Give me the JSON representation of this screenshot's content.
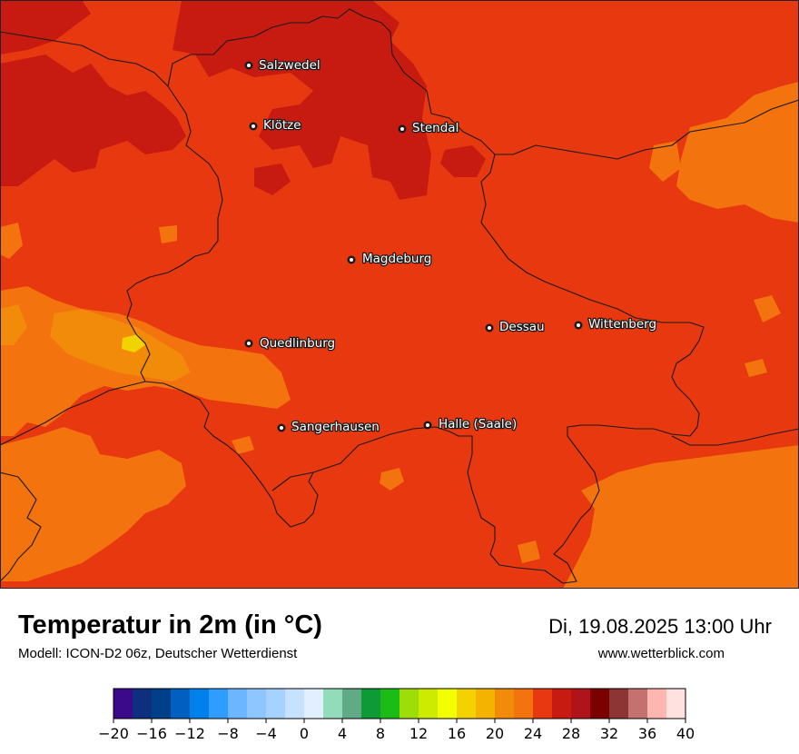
{
  "header": {
    "title": "Temperatur in 2m (in °C)",
    "model": "Modell: ICON-D2 06z, Deutscher Wetterdienst",
    "datetime": "Di, 19.08.2025 13:00 Uhr",
    "website": "www.wetterblick.com"
  },
  "map": {
    "background_color": "#e7380f",
    "cities": [
      {
        "name": "Salzwedel"
      },
      {
        "name": "Klötze"
      },
      {
        "name": "Stendal"
      },
      {
        "name": "Magdeburg"
      },
      {
        "name": "Dessau"
      },
      {
        "name": "Wittenberg"
      },
      {
        "name": "Quedlinburg"
      },
      {
        "name": "Sangerhausen"
      },
      {
        "name": "Halle (Saale)"
      }
    ]
  },
  "legend": {
    "tick_labels": [
      "−20",
      "−16",
      "−12",
      "−8",
      "−4",
      "0",
      "4",
      "8",
      "12",
      "16",
      "20",
      "24",
      "28",
      "32",
      "36",
      "40"
    ],
    "min": -20,
    "max": 40,
    "colors": [
      "#3a0a8a",
      "#0e2f7e",
      "#003f8a",
      "#005fbf",
      "#0080ea",
      "#2f9cff",
      "#6bb6ff",
      "#8ec7ff",
      "#a6d2ff",
      "#c7e2ff",
      "#e1efff",
      "#92dcbc",
      "#60ab86",
      "#0e9a36",
      "#1dbb16",
      "#9ddd08",
      "#cceb00",
      "#f2ff00",
      "#f2d300",
      "#f4b300",
      "#f38b0a",
      "#f3730e",
      "#e7380f",
      "#c71b12",
      "#b0141a",
      "#7b0000",
      "#8d3434",
      "#c37270",
      "#ffb6b1",
      "#ffe1df"
    ]
  }
}
